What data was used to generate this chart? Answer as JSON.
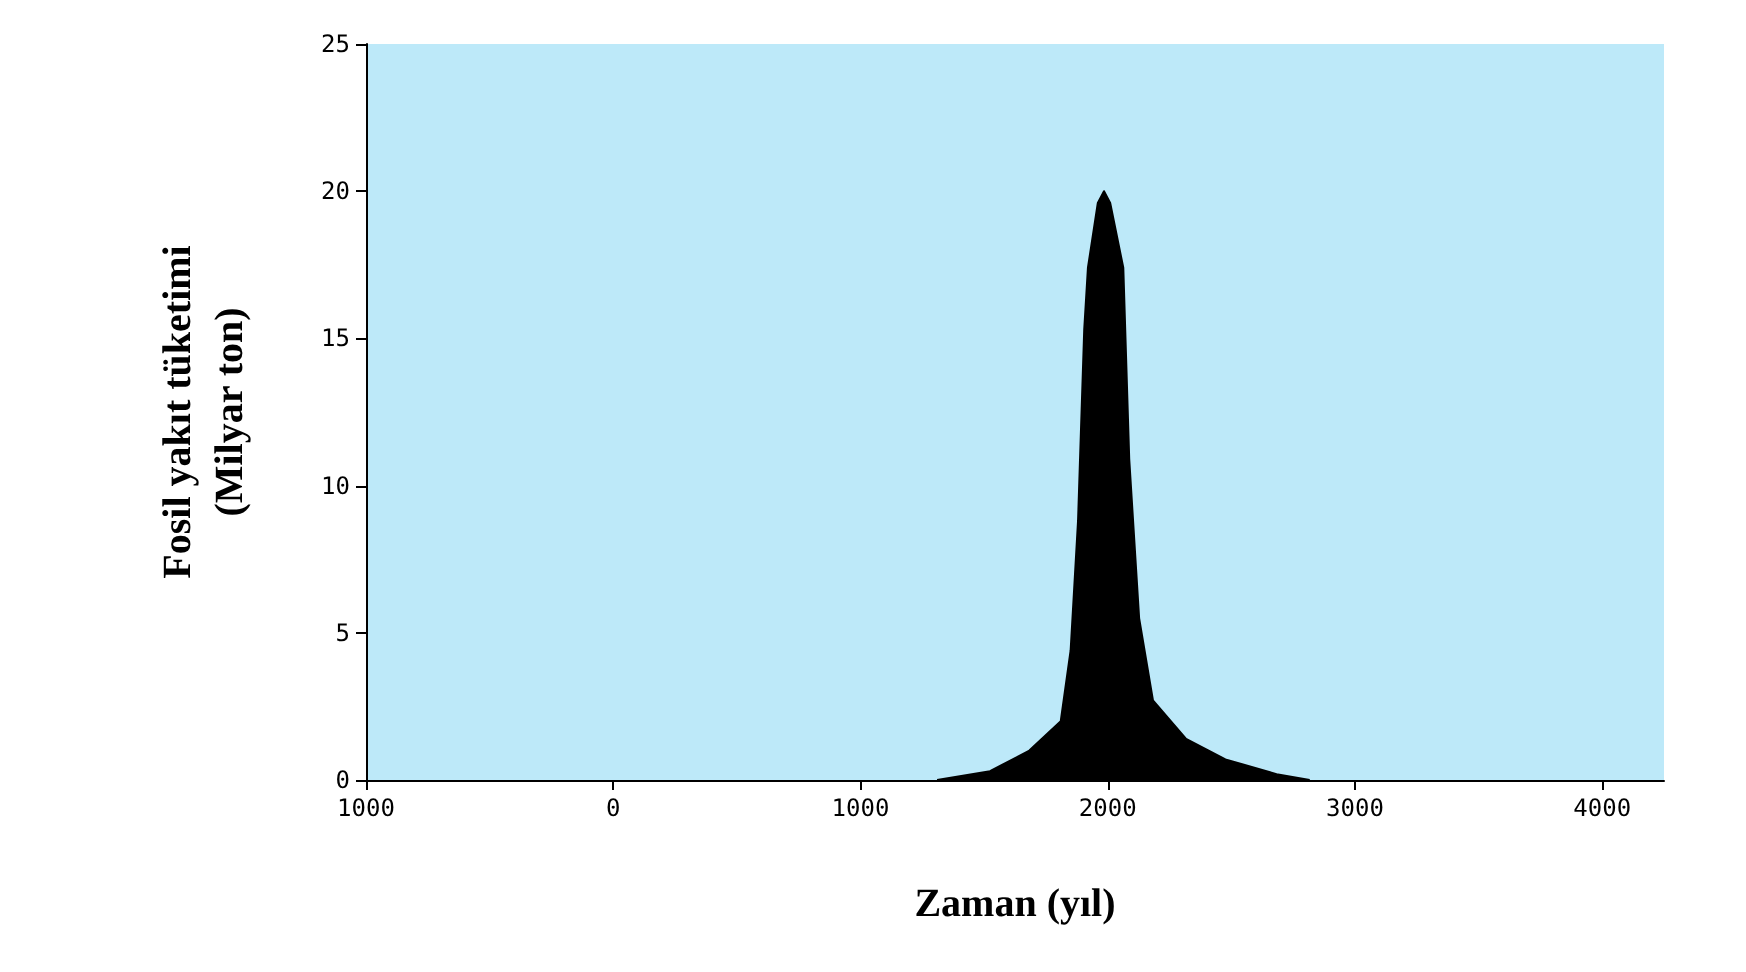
{
  "chart_data": {
    "type": "area",
    "xlabel": "Zaman (yıl)",
    "ylabel": "Fosil yakıt tüketimi\n(Milyar ton)",
    "x": [
      1310,
      1524,
      1683,
      1810,
      1850,
      1880,
      1905,
      1920,
      1960,
      1985,
      2010,
      2063,
      2087,
      2127,
      2183,
      2317,
      2476,
      2683,
      2817
    ],
    "series": [
      {
        "color": "#000000",
        "values": [
          0,
          0.3,
          1.0,
          2.0,
          4.4,
          8.8,
          15.3,
          17.4,
          19.6,
          20,
          19.6,
          17.4,
          10.9,
          5.5,
          2.7,
          1.4,
          0.7,
          0.2,
          0
        ]
      }
    ],
    "xlim": [
      -1000,
      4250
    ],
    "xticks": [
      {
        "value": -1000,
        "label": "1000"
      },
      0,
      1000,
      2000,
      3000,
      4000
    ],
    "ylim": [
      0,
      25
    ],
    "yticks": [
      0,
      5,
      10,
      15,
      20,
      25
    ]
  }
}
